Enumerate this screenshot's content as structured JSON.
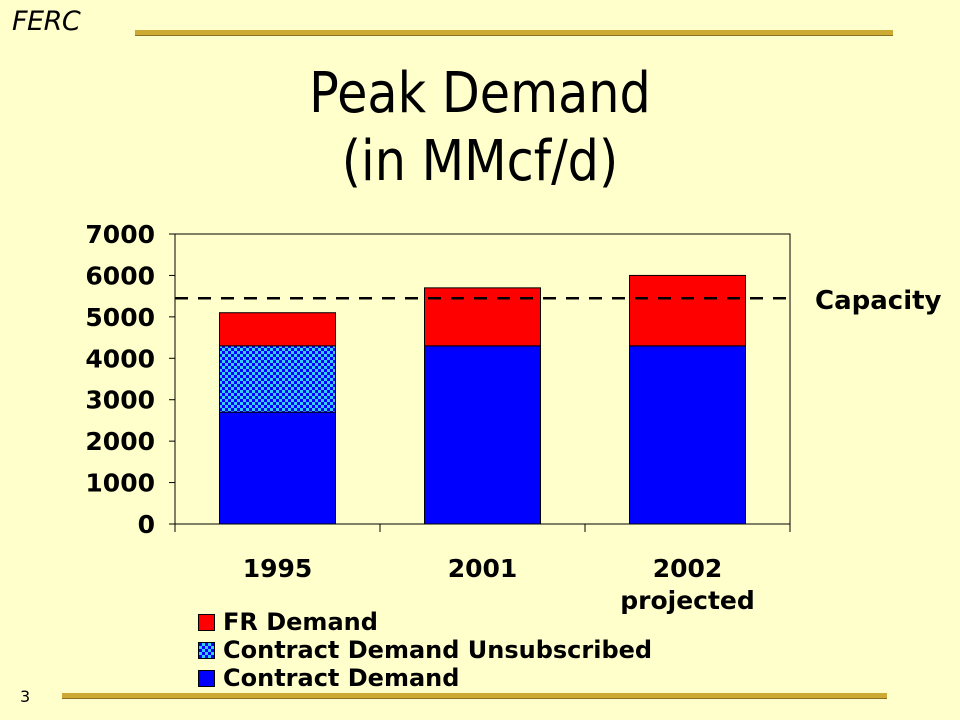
{
  "header": {
    "brand": "FERC"
  },
  "slide": {
    "title_line1": "Peak Demand",
    "title_line2": "(in MMcf/d)",
    "page_number": "3"
  },
  "colors": {
    "background": "#FFFFCC",
    "fr_demand": "#FF0000",
    "contract_unsubscribed": "#33CCFF",
    "contract_demand": "#0000FF",
    "rule": "#CCAA33"
  },
  "chart_data": {
    "type": "bar",
    "stacked": true,
    "categories": [
      "1995",
      "2001",
      "2002"
    ],
    "category_sublabels": [
      "",
      "",
      "projected"
    ],
    "series": [
      {
        "name": "Contract Demand",
        "values": [
          2700,
          4300,
          4300
        ],
        "color": "#0000FF",
        "pattern": "solid"
      },
      {
        "name": "Contract Demand Unsubscribed",
        "values": [
          1600,
          0,
          0
        ],
        "color": "#33CCFF",
        "pattern": "checker"
      },
      {
        "name": "FR Demand",
        "values": [
          800,
          1400,
          1700
        ],
        "color": "#FF0000",
        "pattern": "solid"
      }
    ],
    "ylim": [
      0,
      7000
    ],
    "yticks": [
      "0",
      "1000",
      "2000",
      "3000",
      "4000",
      "5000",
      "6000",
      "7000"
    ],
    "reference_line": {
      "label": "Capacity",
      "value": 5450,
      "style": "dashed"
    },
    "legend": {
      "placement": "bottom",
      "entries": [
        "FR Demand",
        "Contract Demand Unsubscribed",
        "Contract Demand"
      ]
    },
    "grid": false
  }
}
